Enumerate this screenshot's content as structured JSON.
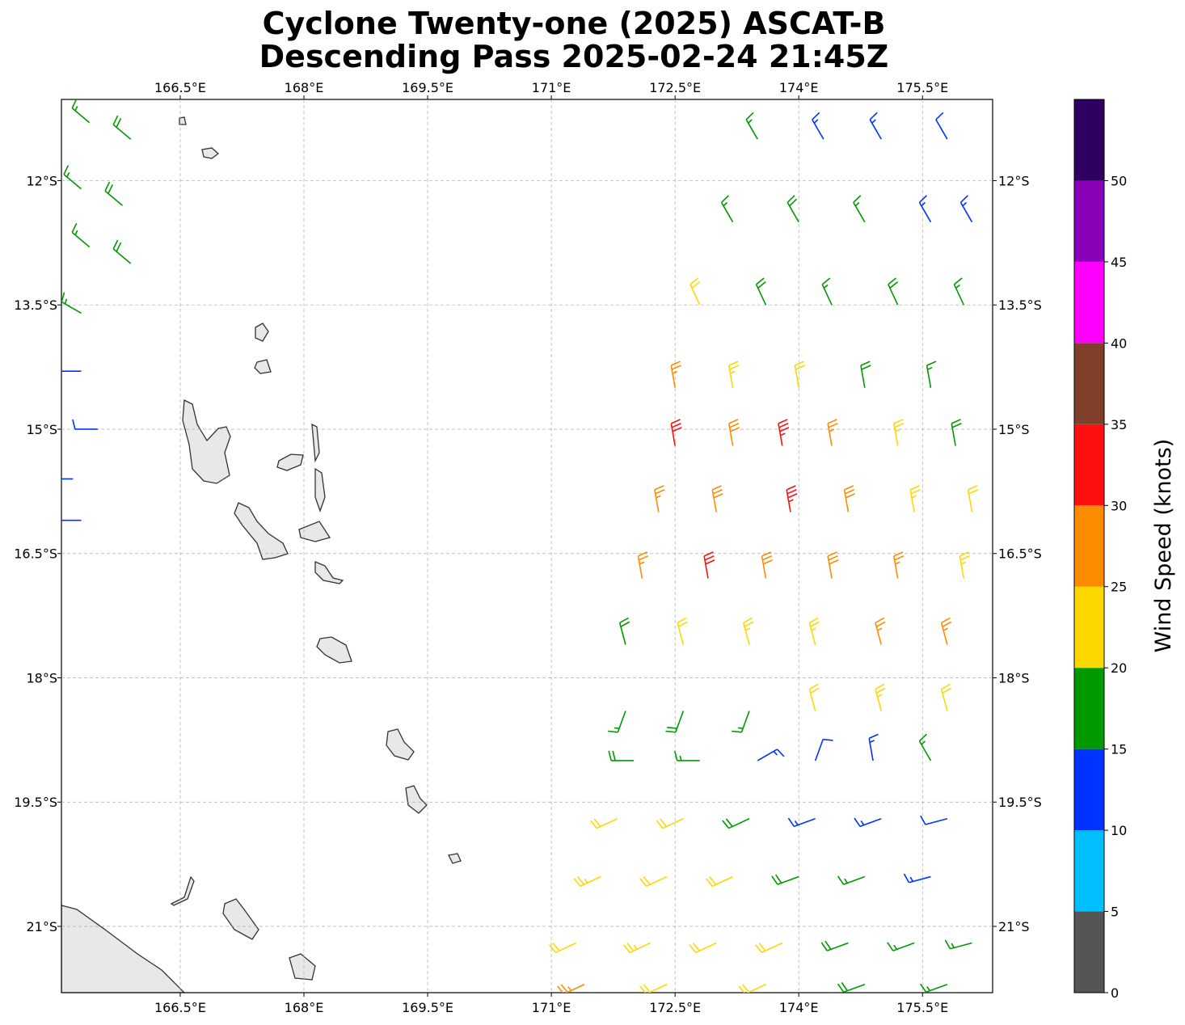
{
  "chart_data": {
    "type": "barbs",
    "title": "Cyclone Twenty-one (2025) ASCAT-B",
    "subtitle": "Descending Pass 2025-02-24 21:45Z",
    "xlim": [
      165.06,
      176.35
    ],
    "ylim": [
      -21.8,
      -11.02
    ],
    "xticks": [
      {
        "value": 166.5,
        "label": "166.5°E"
      },
      {
        "value": 168,
        "label": "168°E"
      },
      {
        "value": 169.5,
        "label": "169.5°E"
      },
      {
        "value": 171,
        "label": "171°E"
      },
      {
        "value": 172.5,
        "label": "172.5°E"
      },
      {
        "value": 174,
        "label": "174°E"
      },
      {
        "value": 175.5,
        "label": "175.5°E"
      }
    ],
    "yticks": [
      {
        "value": -12,
        "label": "12°S"
      },
      {
        "value": -13.5,
        "label": "13.5°S"
      },
      {
        "value": -15,
        "label": "15°S"
      },
      {
        "value": -16.5,
        "label": "16.5°S"
      },
      {
        "value": -18,
        "label": "18°S"
      },
      {
        "value": -19.5,
        "label": "19.5°S"
      },
      {
        "value": -21,
        "label": "21°S"
      }
    ],
    "grid": true,
    "colorbar": {
      "label": "Wind Speed (knots)",
      "lim": [
        0,
        55
      ],
      "ticks": [
        0,
        5,
        10,
        15,
        20,
        25,
        30,
        35,
        40,
        45,
        50
      ],
      "colors": [
        "#555555",
        "#00bfff",
        "#0033ff",
        "#009900",
        "#ffd700",
        "#ff8c00",
        "#ff0f0f",
        "#7f3f2a",
        "#ff00ff",
        "#8800b8",
        "#2e005f"
      ]
    },
    "barbs": {
      "x": [
        165.4,
        165.9,
        165.3,
        165.8,
        165.4,
        165.9,
        165.3,
        165.3,
        165.5,
        165.2,
        165.3,
        173.5,
        174.3,
        175.0,
        175.8,
        173.2,
        174.0,
        174.8,
        175.6,
        176.1,
        172.8,
        173.6,
        174.4,
        175.2,
        176.0,
        172.5,
        173.2,
        174.0,
        174.8,
        175.6,
        172.5,
        173.2,
        173.8,
        174.4,
        175.2,
        175.9,
        172.3,
        173.0,
        173.9,
        174.6,
        175.4,
        176.1,
        172.1,
        172.9,
        173.6,
        174.4,
        175.2,
        176.0,
        171.9,
        172.6,
        173.4,
        174.2,
        175.0,
        175.8,
        171.9,
        172.6,
        173.4,
        174.2,
        175.0,
        175.8,
        172.0,
        172.8,
        173.5,
        174.2,
        174.9,
        175.6,
        171.8,
        172.6,
        173.4,
        174.2,
        175.0,
        175.8,
        171.6,
        172.4,
        173.2,
        174.0,
        174.8,
        175.6,
        171.3,
        172.2,
        173.0,
        173.8,
        174.6,
        175.4,
        176.1,
        171.4,
        172.4,
        173.6,
        174.8,
        175.8
      ],
      "y": [
        -11.3,
        -11.5,
        -12.1,
        -12.3,
        -12.8,
        -13.0,
        -13.6,
        -14.3,
        -15.0,
        -15.6,
        -16.1,
        -11.5,
        -11.5,
        -11.5,
        -11.5,
        -12.5,
        -12.5,
        -12.5,
        -12.5,
        -12.5,
        -13.5,
        -13.5,
        -13.5,
        -13.5,
        -13.5,
        -14.5,
        -14.5,
        -14.5,
        -14.5,
        -14.5,
        -15.2,
        -15.2,
        -15.2,
        -15.2,
        -15.2,
        -15.2,
        -16.0,
        -16.0,
        -16.0,
        -16.0,
        -16.0,
        -16.0,
        -16.8,
        -16.8,
        -16.8,
        -16.8,
        -16.8,
        -16.8,
        -17.6,
        -17.6,
        -17.6,
        -17.6,
        -17.6,
        -17.6,
        -18.4,
        -18.4,
        -18.4,
        -18.4,
        -18.4,
        -18.4,
        -19.0,
        -19.0,
        -19.0,
        -19.0,
        -19.0,
        -19.0,
        -19.7,
        -19.7,
        -19.7,
        -19.7,
        -19.7,
        -19.7,
        -20.4,
        -20.4,
        -20.4,
        -20.4,
        -20.4,
        -20.4,
        -21.2,
        -21.2,
        -21.2,
        -21.2,
        -21.2,
        -21.2,
        -21.2,
        -21.7,
        -21.7,
        -21.7,
        -21.7,
        -21.7
      ],
      "speed": [
        17,
        18,
        17,
        18,
        17,
        18,
        17,
        12,
        12,
        12,
        12,
        17,
        13,
        13,
        12,
        17,
        18,
        17,
        14,
        13,
        22,
        18,
        17,
        18,
        17,
        27,
        23,
        22,
        19,
        17,
        32,
        28,
        33,
        27,
        23,
        18,
        27,
        28,
        34,
        28,
        24,
        22,
        26,
        32,
        29,
        28,
        26,
        23,
        18,
        22,
        23,
        24,
        27,
        26,
        17,
        18,
        17,
        22,
        24,
        22,
        18,
        16,
        13,
        12,
        13,
        16,
        21,
        22,
        19,
        13,
        14,
        12,
        23,
        22,
        21,
        18,
        17,
        14,
        21,
        23,
        22,
        21,
        19,
        17,
        16,
        27,
        22,
        21,
        18,
        17
      ],
      "direction": [
        310,
        310,
        310,
        310,
        310,
        310,
        300,
        270,
        270,
        270,
        270,
        330,
        330,
        330,
        330,
        330,
        330,
        330,
        330,
        330,
        335,
        335,
        335,
        335,
        335,
        350,
        350,
        350,
        350,
        350,
        350,
        350,
        350,
        350,
        350,
        350,
        350,
        350,
        350,
        350,
        350,
        350,
        350,
        350,
        350,
        350,
        350,
        350,
        345,
        345,
        345,
        345,
        345,
        345,
        200,
        200,
        200,
        345,
        345,
        345,
        270,
        270,
        60,
        20,
        350,
        330,
        245,
        245,
        245,
        250,
        250,
        255,
        245,
        245,
        245,
        250,
        250,
        255,
        245,
        245,
        245,
        245,
        250,
        250,
        255,
        245,
        245,
        245,
        250,
        250
      ]
    }
  }
}
